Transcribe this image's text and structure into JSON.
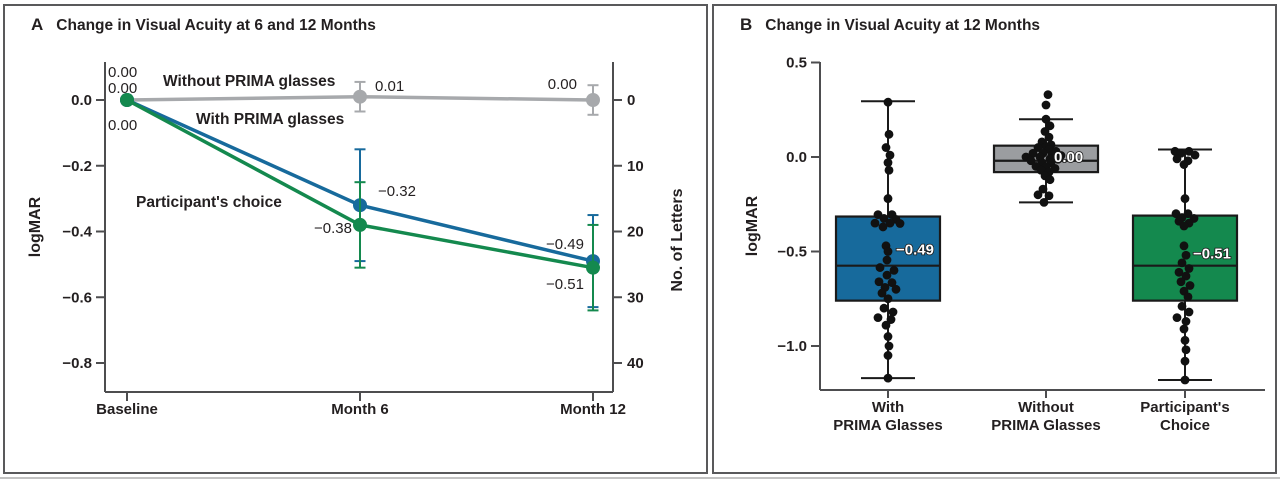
{
  "panels": {
    "a": {
      "label": "A",
      "title": "Change in Visual Acuity at 6 and 12 Months"
    },
    "b": {
      "label": "B",
      "title": "Change in Visual Acuity at 12 Months"
    }
  },
  "colors": {
    "blue": "#176a9c",
    "green": "#14894e",
    "gray_line": "#a7a9ac",
    "gray_box": "#9b9da0",
    "axis": "#4d4d4f",
    "panel_border": "#59595b",
    "text": "#231f20",
    "dot": "#111111"
  },
  "chart_data": [
    {
      "type": "line",
      "panel": "A",
      "title": "Change in Visual Acuity at 6 and 12 Months",
      "categories": [
        "Baseline",
        "Month 6",
        "Month 12"
      ],
      "ylabel_left": "logMAR",
      "ylabel_right": "No. of Letters",
      "yticks_left": [
        0.0,
        -0.2,
        -0.4,
        -0.6,
        -0.8
      ],
      "yticks_right": [
        0,
        10,
        20,
        30,
        40
      ],
      "ylim": [
        0.12,
        -0.89
      ],
      "grid": false,
      "legend": "inline-annotations",
      "series": [
        {
          "name": "Without PRIMA glasses",
          "color": "#a7a9ac",
          "values": [
            0.0,
            0.01,
            0.0
          ],
          "errors": [
            0,
            0.045,
            0.045
          ],
          "point_labels": [
            "0.00",
            "0.01",
            "0.00"
          ]
        },
        {
          "name": "With PRIMA glasses",
          "color": "#176a9c",
          "values": [
            0.0,
            -0.32,
            -0.49
          ],
          "errors": [
            0,
            0.17,
            0.14
          ],
          "point_labels": [
            "0.00",
            "−0.32",
            "−0.49"
          ]
        },
        {
          "name": "Participant's choice",
          "color": "#14894e",
          "values": [
            0.0,
            -0.38,
            -0.51
          ],
          "errors": [
            0,
            0.13,
            0.13
          ],
          "point_labels": [
            "0.00",
            "−0.38",
            "−0.51"
          ]
        }
      ]
    },
    {
      "type": "box",
      "panel": "B",
      "title": "Change in Visual Acuity at 12 Months",
      "ylabel": "logMAR",
      "yticks": [
        0.5,
        0.0,
        -0.5,
        -1.0
      ],
      "ylim": [
        0.5,
        -1.23
      ],
      "groups": [
        {
          "label_lines": [
            "With",
            "PRIMA Glasses"
          ],
          "color": "#176a9c",
          "median": -0.575,
          "q1": -0.76,
          "q3": -0.315,
          "whisker_low": -1.17,
          "whisker_high": 0.295,
          "mean": -0.49,
          "mean_label": "−0.49",
          "points": [
            [
              0,
              0.29
            ],
            [
              1,
              0.12
            ],
            [
              -2,
              0.05
            ],
            [
              2,
              0.01
            ],
            [
              0,
              -0.03
            ],
            [
              1,
              -0.07
            ],
            [
              0,
              -0.22
            ],
            [
              -10,
              -0.305
            ],
            [
              4,
              -0.305
            ],
            [
              -4,
              -0.325
            ],
            [
              8,
              -0.33
            ],
            [
              -13,
              -0.35
            ],
            [
              2,
              -0.35
            ],
            [
              12,
              -0.352
            ],
            [
              -5,
              -0.37
            ],
            [
              -2,
              -0.47
            ],
            [
              0,
              -0.5
            ],
            [
              -1,
              -0.545
            ],
            [
              -8,
              -0.585
            ],
            [
              6,
              -0.6
            ],
            [
              -1,
              -0.625
            ],
            [
              -9,
              -0.66
            ],
            [
              4,
              -0.665
            ],
            [
              -3,
              -0.69
            ],
            [
              8,
              -0.7
            ],
            [
              -6,
              -0.72
            ],
            [
              0,
              -0.75
            ],
            [
              -4,
              -0.8
            ],
            [
              5,
              -0.82
            ],
            [
              -10,
              -0.85
            ],
            [
              3,
              -0.86
            ],
            [
              -2,
              -0.89
            ],
            [
              0,
              -0.95
            ],
            [
              1,
              -1.0
            ],
            [
              0,
              -1.05
            ],
            [
              0,
              -1.17
            ]
          ]
        },
        {
          "label_lines": [
            "Without",
            "PRIMA Glasses"
          ],
          "color": "#9b9da0",
          "median": -0.02,
          "q1": -0.08,
          "q3": 0.06,
          "whisker_low": -0.24,
          "whisker_high": 0.2,
          "mean": 0.0,
          "mean_label": "0.00",
          "points": [
            [
              2,
              0.33
            ],
            [
              0,
              0.275
            ],
            [
              0,
              0.2
            ],
            [
              4,
              0.165
            ],
            [
              -1,
              0.135
            ],
            [
              3,
              0.105
            ],
            [
              -4,
              0.08
            ],
            [
              5,
              0.065
            ],
            [
              0,
              0.055
            ],
            [
              -8,
              0.05
            ],
            [
              3,
              0.04
            ],
            [
              10,
              0.03
            ],
            [
              -13,
              0.02
            ],
            [
              -3,
              0.02
            ],
            [
              6,
              0.01
            ],
            [
              15,
              0.008
            ],
            [
              -20,
              0.0
            ],
            [
              -6,
              0.0
            ],
            [
              4,
              -0.01
            ],
            [
              12,
              -0.012
            ],
            [
              -15,
              -0.02
            ],
            [
              -4,
              -0.03
            ],
            [
              5,
              -0.032
            ],
            [
              -10,
              -0.05
            ],
            [
              0,
              -0.052
            ],
            [
              9,
              -0.06
            ],
            [
              -5,
              -0.07
            ],
            [
              3,
              -0.08
            ],
            [
              -1,
              -0.1
            ],
            [
              4,
              -0.12
            ],
            [
              -3,
              -0.17
            ],
            [
              -8,
              -0.2
            ],
            [
              3,
              -0.205
            ],
            [
              -2,
              -0.24
            ]
          ]
        },
        {
          "label_lines": [
            "Participant's",
            "Choice"
          ],
          "color": "#14894e",
          "median": -0.575,
          "q1": -0.76,
          "q3": -0.31,
          "whisker_low": -1.18,
          "whisker_high": 0.04,
          "mean": -0.51,
          "mean_label": "−0.51",
          "points": [
            [
              -10,
              0.03
            ],
            [
              4,
              0.03
            ],
            [
              -4,
              0.02
            ],
            [
              10,
              0.01
            ],
            [
              -8,
              -0.01
            ],
            [
              3,
              -0.02
            ],
            [
              -1,
              -0.04
            ],
            [
              0,
              -0.22
            ],
            [
              -9,
              -0.3
            ],
            [
              3,
              -0.3
            ],
            [
              -3,
              -0.32
            ],
            [
              9,
              -0.325
            ],
            [
              -6,
              -0.34
            ],
            [
              4,
              -0.35
            ],
            [
              -1,
              -0.365
            ],
            [
              -1,
              -0.47
            ],
            [
              1,
              -0.52
            ],
            [
              -3,
              -0.56
            ],
            [
              4,
              -0.59
            ],
            [
              -6,
              -0.61
            ],
            [
              1,
              -0.63
            ],
            [
              -4,
              -0.66
            ],
            [
              5,
              -0.68
            ],
            [
              -1,
              -0.71
            ],
            [
              3,
              -0.74
            ],
            [
              -3,
              -0.79
            ],
            [
              4,
              -0.82
            ],
            [
              -8,
              -0.85
            ],
            [
              1,
              -0.87
            ],
            [
              -1,
              -0.91
            ],
            [
              0,
              -0.97
            ],
            [
              1,
              -1.02
            ],
            [
              0,
              -1.08
            ],
            [
              0,
              -1.18
            ]
          ]
        }
      ]
    }
  ]
}
